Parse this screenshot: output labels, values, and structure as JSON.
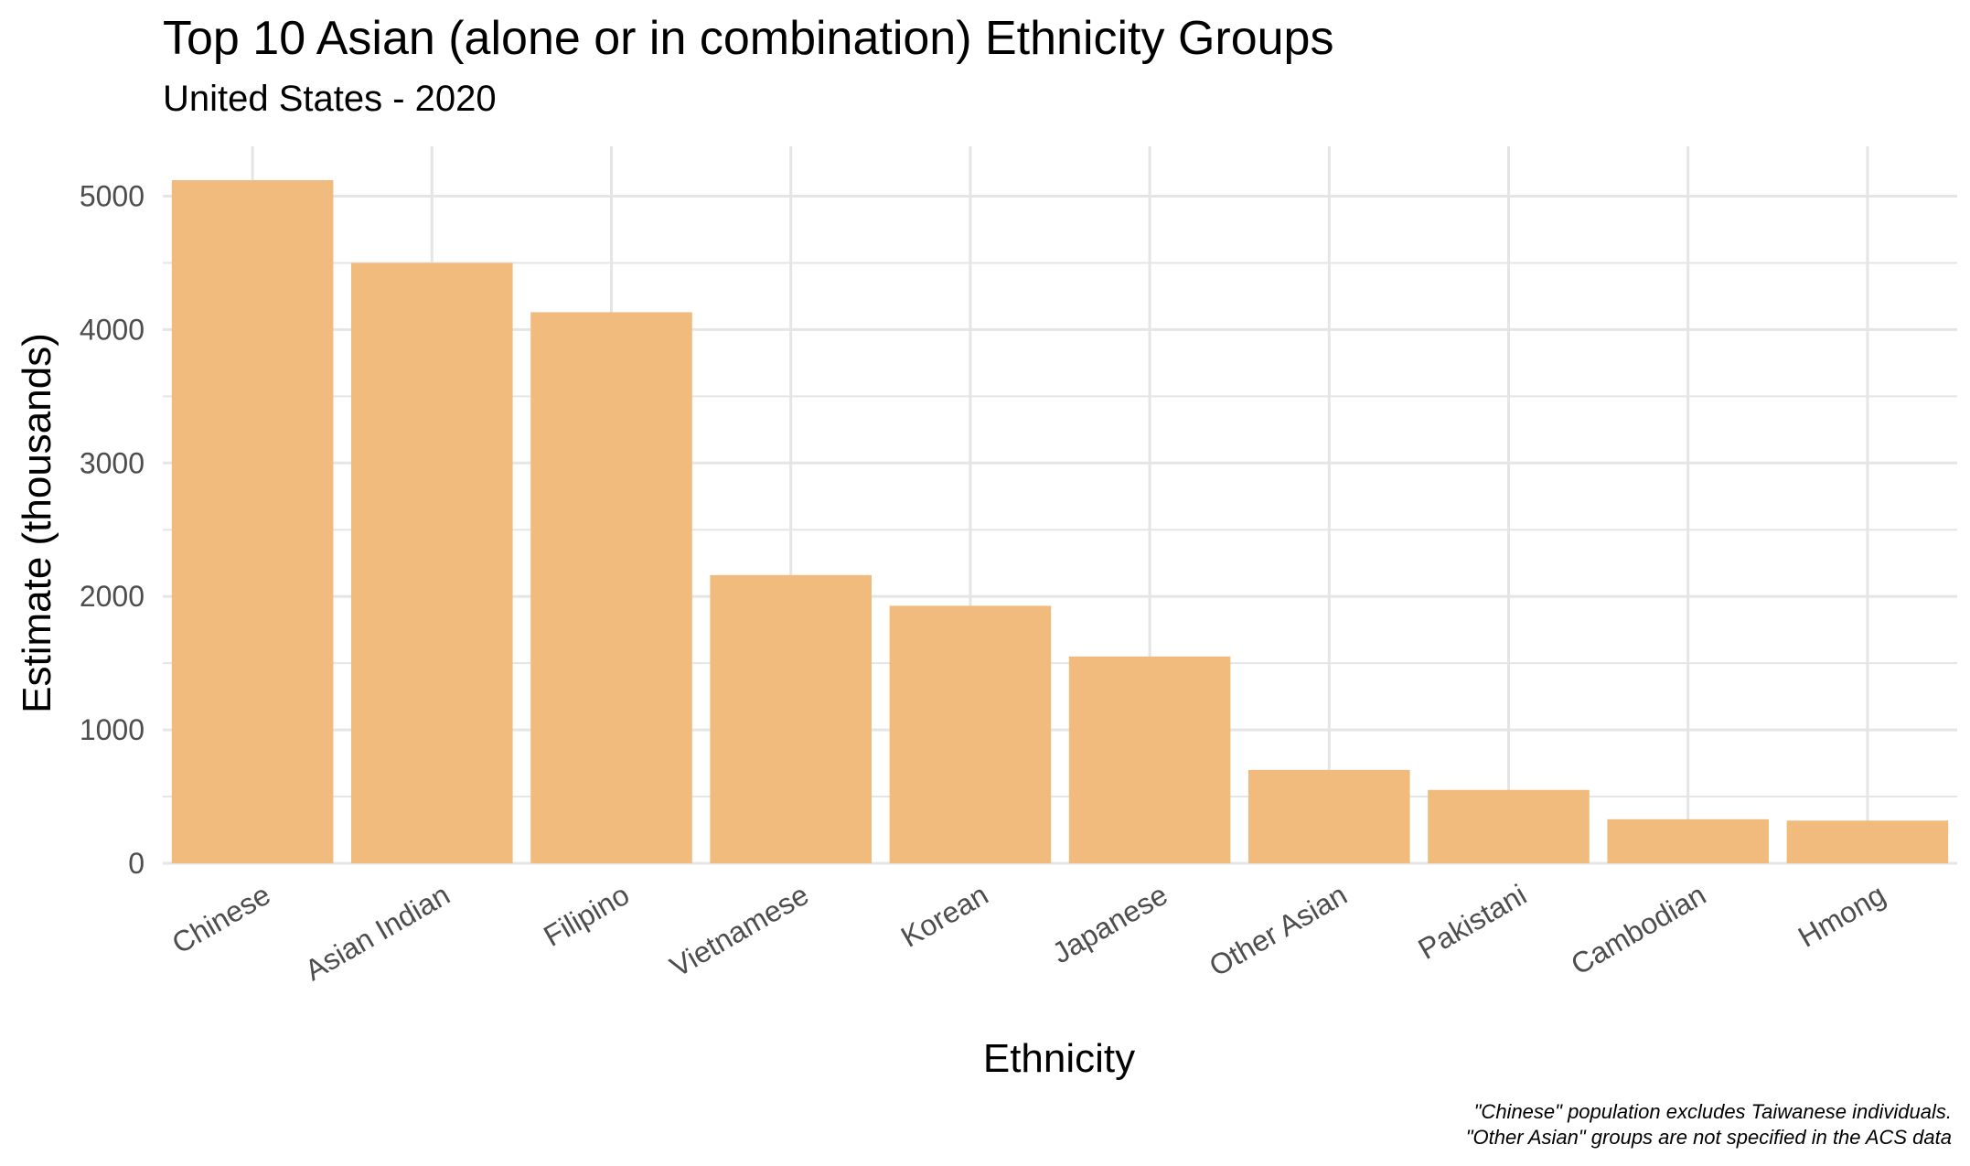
{
  "chart_data": {
    "type": "bar",
    "title": "Top 10 Asian (alone or in combination) Ethnicity Groups",
    "subtitle": "United States - 2020",
    "xlabel": "Ethnicity",
    "ylabel": "Estimate (thousands)",
    "categories": [
      "Chinese",
      "Asian Indian",
      "Filipino",
      "Vietnamese",
      "Korean",
      "Japanese",
      "Other Asian",
      "Pakistani",
      "Cambodian",
      "Hmong"
    ],
    "values": [
      5120,
      4500,
      4130,
      2160,
      1930,
      1550,
      700,
      550,
      330,
      320
    ],
    "ylim": [
      0,
      5400
    ],
    "yticks": [
      0,
      1000,
      2000,
      3000,
      4000,
      5000
    ],
    "grid": true,
    "bar_color": "#F0BB7C",
    "grid_color": "#E5E5E5",
    "caption": [
      "\"Chinese\" population excludes Taiwanese individuals.",
      "\"Other Asian\" groups are not specified in the ACS data"
    ]
  }
}
